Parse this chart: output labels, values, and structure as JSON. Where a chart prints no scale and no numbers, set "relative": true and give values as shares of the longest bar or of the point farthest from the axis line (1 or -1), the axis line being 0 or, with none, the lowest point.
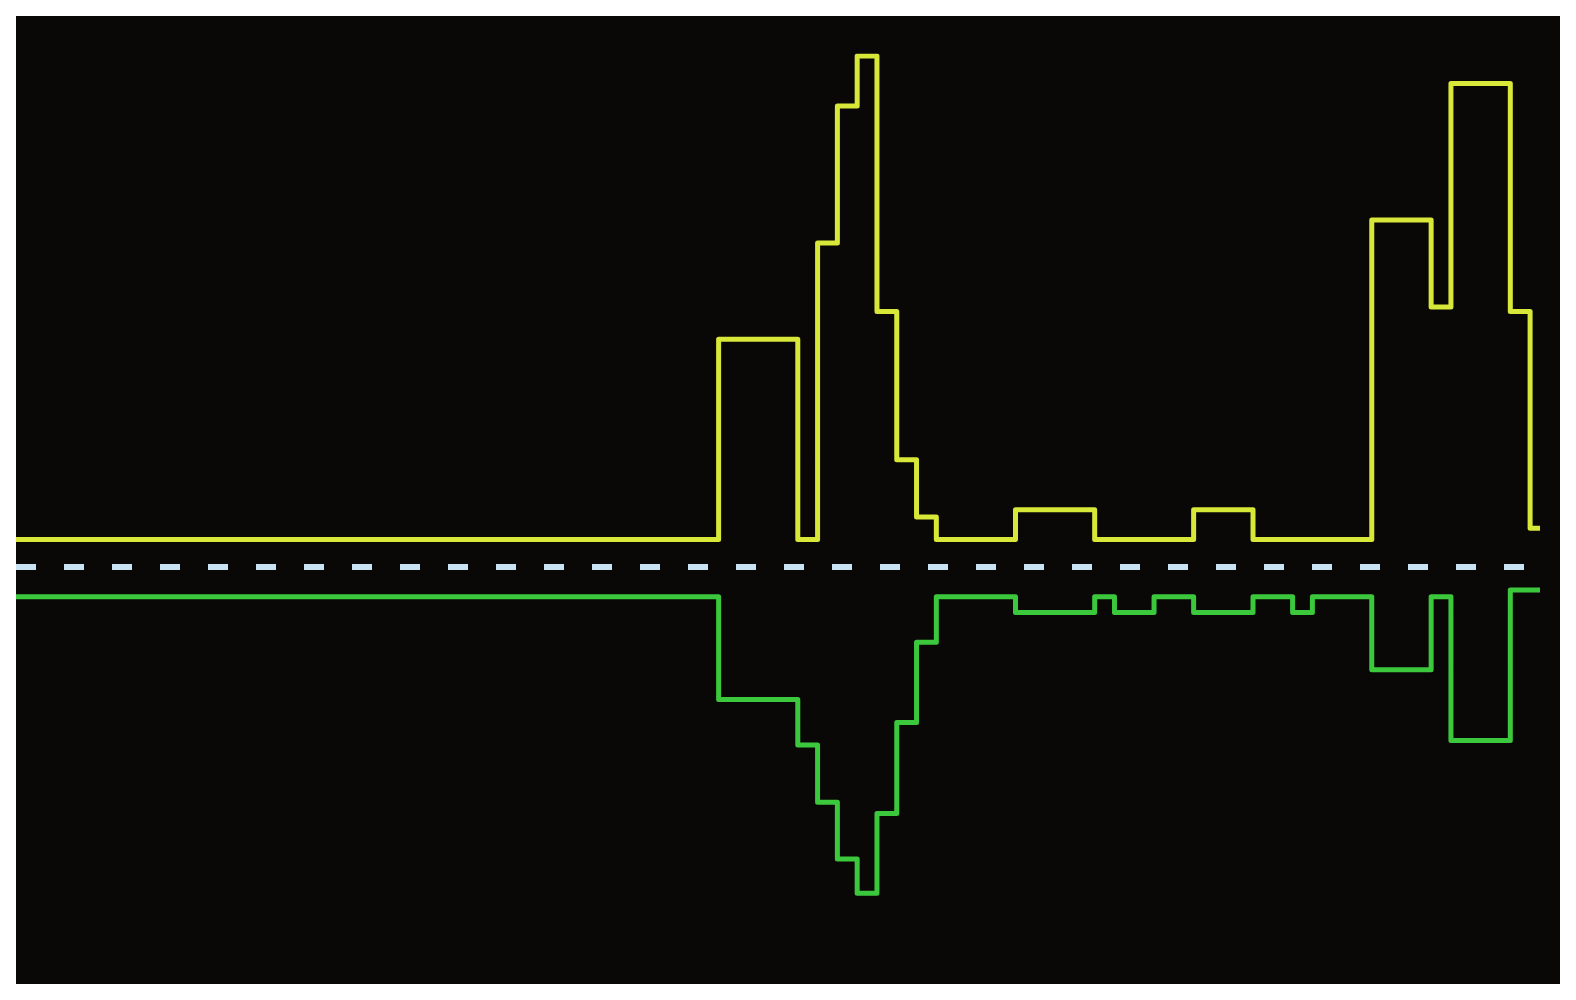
{
  "chart_data": {
    "type": "step",
    "relative": true,
    "legend": false,
    "marker": "none",
    "categories": [
      null,
      null,
      null,
      null,
      null,
      null,
      null,
      null,
      null,
      null,
      null,
      null,
      null,
      null,
      null,
      null,
      null,
      null,
      null,
      null,
      null,
      null,
      null,
      null,
      null,
      null,
      null,
      null,
      null,
      null,
      null,
      null,
      null,
      null,
      null,
      null,
      null,
      null,
      null,
      null,
      null,
      null,
      null,
      null,
      null,
      null,
      null,
      null,
      null,
      null,
      null,
      null,
      null,
      null,
      null,
      null,
      null,
      null,
      null,
      null,
      null,
      null,
      null,
      null,
      null,
      null,
      null,
      null,
      null,
      null,
      null,
      null,
      null,
      null,
      null,
      null,
      null,
      null
    ],
    "series": [
      {
        "color": "#d8e838",
        "values": [
          0.054,
          0.054,
          0.054,
          0.054,
          0.054,
          0.054,
          0.054,
          0.054,
          0.054,
          0.054,
          0.054,
          0.054,
          0.054,
          0.054,
          0.054,
          0.054,
          0.054,
          0.054,
          0.054,
          0.054,
          0.054,
          0.054,
          0.054,
          0.054,
          0.054,
          0.054,
          0.054,
          0.054,
          0.054,
          0.054,
          0.054,
          0.054,
          0.054,
          0.054,
          0.054,
          0.054,
          0.446,
          0.446,
          0.446,
          0.446,
          0.054,
          0.634,
          0.902,
          1,
          0.5,
          0.21,
          0.098,
          0.054,
          0.054,
          0.054,
          0.054,
          0.112,
          0.112,
          0.112,
          0.112,
          0.054,
          0.054,
          0.054,
          0.054,
          0.054,
          0.112,
          0.112,
          0.112,
          0.054,
          0.054,
          0.054,
          0.054,
          0.054,
          0.054,
          0.679,
          0.679,
          0.679,
          0.509,
          0.946,
          0.946,
          0.946,
          0.5,
          0.076
        ]
      },
      {
        "color": "#3cc83c",
        "values": [
          -0.058,
          -0.058,
          -0.058,
          -0.058,
          -0.058,
          -0.058,
          -0.058,
          -0.058,
          -0.058,
          -0.058,
          -0.058,
          -0.058,
          -0.058,
          -0.058,
          -0.058,
          -0.058,
          -0.058,
          -0.058,
          -0.058,
          -0.058,
          -0.058,
          -0.058,
          -0.058,
          -0.058,
          -0.058,
          -0.058,
          -0.058,
          -0.058,
          -0.058,
          -0.058,
          -0.058,
          -0.058,
          -0.058,
          -0.058,
          -0.058,
          -0.058,
          -0.259,
          -0.259,
          -0.259,
          -0.259,
          -0.348,
          -0.46,
          -0.571,
          -0.638,
          -0.482,
          -0.304,
          -0.147,
          -0.058,
          -0.058,
          -0.058,
          -0.058,
          -0.089,
          -0.089,
          -0.089,
          -0.089,
          -0.058,
          -0.089,
          -0.089,
          -0.058,
          -0.058,
          -0.089,
          -0.089,
          -0.089,
          -0.058,
          -0.058,
          -0.089,
          -0.058,
          -0.058,
          -0.058,
          -0.201,
          -0.201,
          -0.201,
          -0.058,
          -0.339,
          -0.339,
          -0.339,
          -0.045,
          -0.045
        ]
      }
    ],
    "ref_lines": [
      {
        "axis": "y",
        "value": 0,
        "color": "#c8e4f4",
        "line_style": "dashed"
      }
    ]
  }
}
